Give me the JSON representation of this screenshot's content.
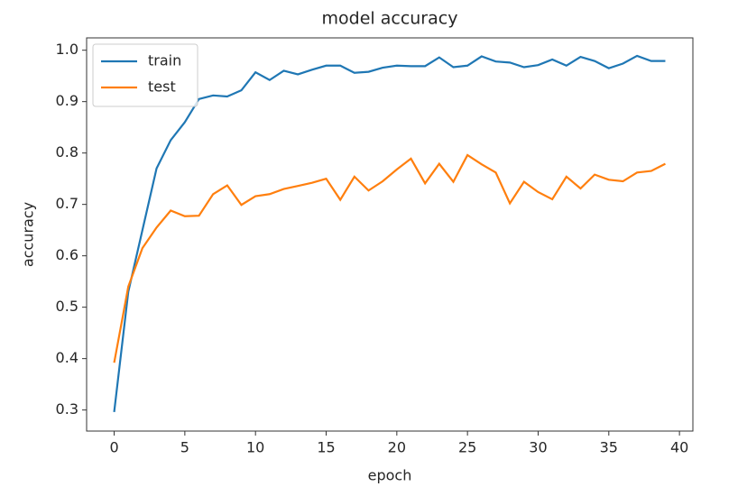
{
  "chart_data": {
    "type": "line",
    "title": "model accuracy",
    "xlabel": "epoch",
    "ylabel": "accuracy",
    "x": [
      0,
      1,
      2,
      3,
      4,
      5,
      6,
      7,
      8,
      9,
      10,
      11,
      12,
      13,
      14,
      15,
      16,
      17,
      18,
      19,
      20,
      21,
      22,
      23,
      24,
      25,
      26,
      27,
      28,
      29,
      30,
      31,
      32,
      33,
      34,
      35,
      36,
      37,
      38,
      39
    ],
    "series": [
      {
        "name": "train",
        "color": "#1f77b4",
        "values": [
          0.296,
          0.53,
          0.65,
          0.77,
          0.825,
          0.86,
          0.905,
          0.912,
          0.91,
          0.922,
          0.957,
          0.942,
          0.96,
          0.953,
          0.962,
          0.97,
          0.97,
          0.956,
          0.958,
          0.966,
          0.97,
          0.969,
          0.969,
          0.986,
          0.967,
          0.97,
          0.988,
          0.978,
          0.976,
          0.967,
          0.971,
          0.982,
          0.97,
          0.987,
          0.979,
          0.965,
          0.974,
          0.989,
          0.979,
          0.979
        ]
      },
      {
        "name": "test",
        "color": "#ff7f0e",
        "values": [
          0.392,
          0.54,
          0.615,
          0.655,
          0.688,
          0.677,
          0.678,
          0.72,
          0.737,
          0.699,
          0.716,
          0.72,
          0.73,
          0.736,
          0.742,
          0.75,
          0.709,
          0.754,
          0.727,
          0.745,
          0.768,
          0.789,
          0.741,
          0.779,
          0.744,
          0.796,
          0.778,
          0.762,
          0.702,
          0.744,
          0.724,
          0.71,
          0.754,
          0.731,
          0.758,
          0.748,
          0.745,
          0.762,
          0.765,
          0.779
        ]
      }
    ],
    "xlim": [
      -1.95,
      40.95
    ],
    "xticks": [
      0,
      5,
      10,
      15,
      20,
      25,
      30,
      35,
      40
    ],
    "ylim": [
      0.259,
      1.024
    ],
    "yticks": [
      0.3,
      0.4,
      0.5,
      0.6,
      0.7,
      0.8,
      0.9,
      {
        "value": 1,
        "label": "1.0"
      }
    ],
    "legend": "upper left"
  }
}
